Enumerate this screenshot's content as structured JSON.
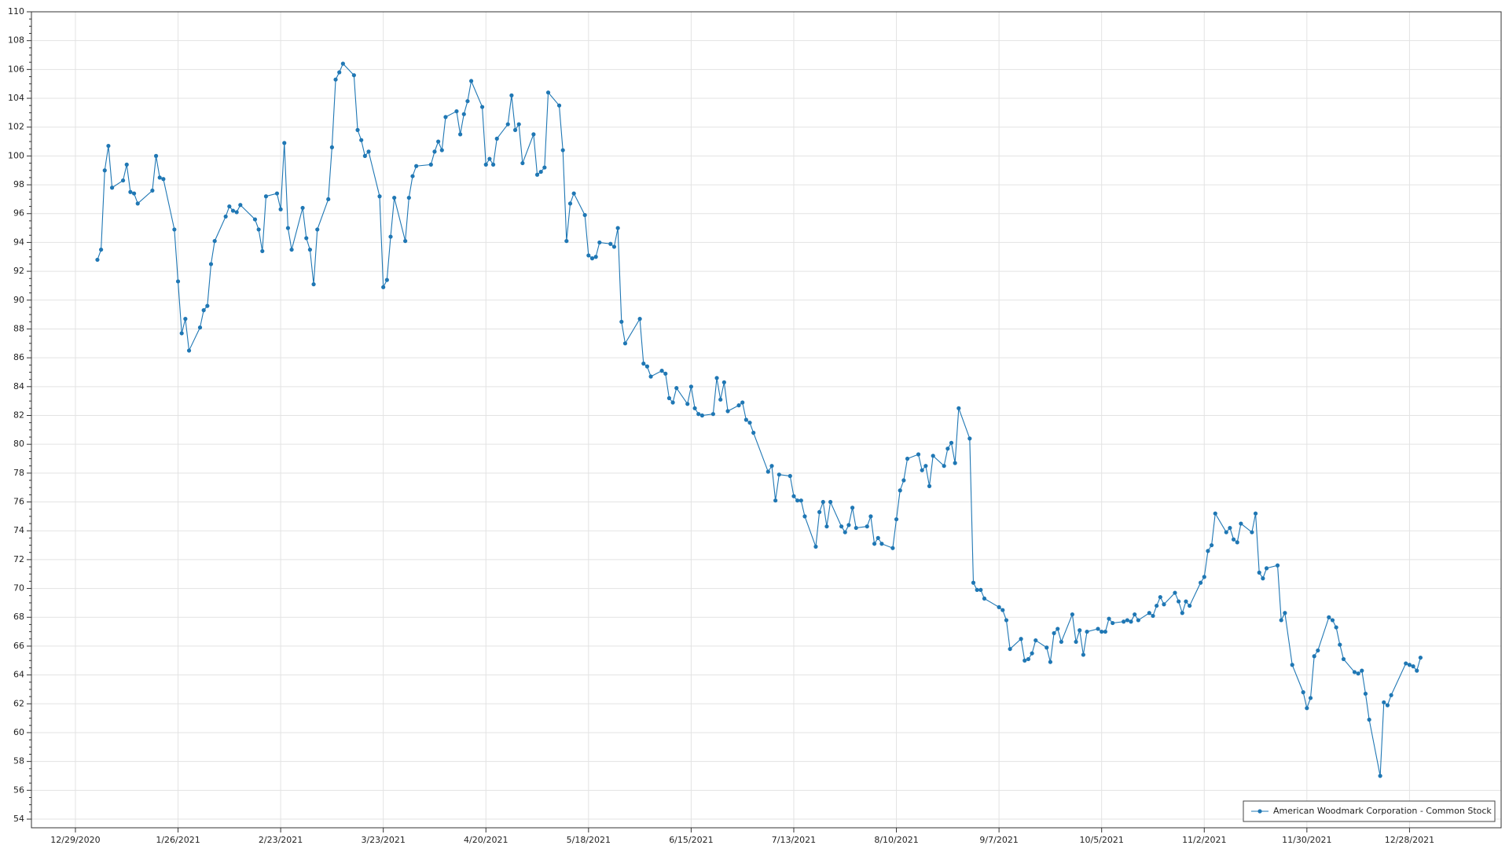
{
  "chart_data": {
    "type": "line",
    "x": [
      "2021-01-04",
      "2021-01-05",
      "2021-01-06",
      "2021-01-07",
      "2021-01-08",
      "2021-01-11",
      "2021-01-12",
      "2021-01-13",
      "2021-01-14",
      "2021-01-15",
      "2021-01-19",
      "2021-01-20",
      "2021-01-21",
      "2021-01-22",
      "2021-01-25",
      "2021-01-26",
      "2021-01-27",
      "2021-01-28",
      "2021-01-29",
      "2021-02-01",
      "2021-02-02",
      "2021-02-03",
      "2021-02-04",
      "2021-02-05",
      "2021-02-08",
      "2021-02-09",
      "2021-02-10",
      "2021-02-11",
      "2021-02-12",
      "2021-02-16",
      "2021-02-17",
      "2021-02-18",
      "2021-02-19",
      "2021-02-22",
      "2021-02-23",
      "2021-02-24",
      "2021-02-25",
      "2021-02-26",
      "2021-03-01",
      "2021-03-02",
      "2021-03-03",
      "2021-03-04",
      "2021-03-05",
      "2021-03-08",
      "2021-03-09",
      "2021-03-10",
      "2021-03-11",
      "2021-03-12",
      "2021-03-15",
      "2021-03-16",
      "2021-03-17",
      "2021-03-18",
      "2021-03-19",
      "2021-03-22",
      "2021-03-23",
      "2021-03-24",
      "2021-03-25",
      "2021-03-26",
      "2021-03-29",
      "2021-03-30",
      "2021-03-31",
      "2021-04-01",
      "2021-04-05",
      "2021-04-06",
      "2021-04-07",
      "2021-04-08",
      "2021-04-09",
      "2021-04-12",
      "2021-04-13",
      "2021-04-14",
      "2021-04-15",
      "2021-04-16",
      "2021-04-19",
      "2021-04-20",
      "2021-04-21",
      "2021-04-22",
      "2021-04-23",
      "2021-04-26",
      "2021-04-27",
      "2021-04-28",
      "2021-04-29",
      "2021-04-30",
      "2021-05-03",
      "2021-05-04",
      "2021-05-05",
      "2021-05-06",
      "2021-05-07",
      "2021-05-10",
      "2021-05-11",
      "2021-05-12",
      "2021-05-13",
      "2021-05-14",
      "2021-05-17",
      "2021-05-18",
      "2021-05-19",
      "2021-05-20",
      "2021-05-21",
      "2021-05-24",
      "2021-05-25",
      "2021-05-26",
      "2021-05-27",
      "2021-05-28",
      "2021-06-01",
      "2021-06-02",
      "2021-06-03",
      "2021-06-04",
      "2021-06-07",
      "2021-06-08",
      "2021-06-09",
      "2021-06-10",
      "2021-06-11",
      "2021-06-14",
      "2021-06-15",
      "2021-06-16",
      "2021-06-17",
      "2021-06-18",
      "2021-06-21",
      "2021-06-22",
      "2021-06-23",
      "2021-06-24",
      "2021-06-25",
      "2021-06-28",
      "2021-06-29",
      "2021-06-30",
      "2021-07-01",
      "2021-07-02",
      "2021-07-06",
      "2021-07-07",
      "2021-07-08",
      "2021-07-09",
      "2021-07-12",
      "2021-07-13",
      "2021-07-14",
      "2021-07-15",
      "2021-07-16",
      "2021-07-19",
      "2021-07-20",
      "2021-07-21",
      "2021-07-22",
      "2021-07-23",
      "2021-07-26",
      "2021-07-27",
      "2021-07-28",
      "2021-07-29",
      "2021-07-30",
      "2021-08-02",
      "2021-08-03",
      "2021-08-04",
      "2021-08-05",
      "2021-08-06",
      "2021-08-09",
      "2021-08-10",
      "2021-08-11",
      "2021-08-12",
      "2021-08-13",
      "2021-08-16",
      "2021-08-17",
      "2021-08-18",
      "2021-08-19",
      "2021-08-20",
      "2021-08-23",
      "2021-08-24",
      "2021-08-25",
      "2021-08-26",
      "2021-08-27",
      "2021-08-30",
      "2021-08-31",
      "2021-09-01",
      "2021-09-02",
      "2021-09-03",
      "2021-09-07",
      "2021-09-08",
      "2021-09-09",
      "2021-09-10",
      "2021-09-13",
      "2021-09-14",
      "2021-09-15",
      "2021-09-16",
      "2021-09-17",
      "2021-09-20",
      "2021-09-21",
      "2021-09-22",
      "2021-09-23",
      "2021-09-24",
      "2021-09-27",
      "2021-09-28",
      "2021-09-29",
      "2021-09-30",
      "2021-10-01",
      "2021-10-04",
      "2021-10-05",
      "2021-10-06",
      "2021-10-07",
      "2021-10-08",
      "2021-10-11",
      "2021-10-12",
      "2021-10-13",
      "2021-10-14",
      "2021-10-15",
      "2021-10-18",
      "2021-10-19",
      "2021-10-20",
      "2021-10-21",
      "2021-10-22",
      "2021-10-25",
      "2021-10-26",
      "2021-10-27",
      "2021-10-28",
      "2021-10-29",
      "2021-11-01",
      "2021-11-02",
      "2021-11-03",
      "2021-11-04",
      "2021-11-05",
      "2021-11-08",
      "2021-11-09",
      "2021-11-10",
      "2021-11-11",
      "2021-11-12",
      "2021-11-15",
      "2021-11-16",
      "2021-11-17",
      "2021-11-18",
      "2021-11-19",
      "2021-11-22",
      "2021-11-23",
      "2021-11-24",
      "2021-11-26",
      "2021-11-29",
      "2021-11-30",
      "2021-12-01",
      "2021-12-02",
      "2021-12-03",
      "2021-12-06",
      "2021-12-07",
      "2021-12-08",
      "2021-12-09",
      "2021-12-10",
      "2021-12-13",
      "2021-12-14",
      "2021-12-15",
      "2021-12-16",
      "2021-12-17",
      "2021-12-20",
      "2021-12-21",
      "2021-12-22",
      "2021-12-23",
      "2021-12-27",
      "2021-12-28",
      "2021-12-29",
      "2021-12-30",
      "2021-12-31"
    ],
    "series": [
      {
        "name": "American Woodmark Corporation - Common Stock",
        "color": "#1f77b4",
        "values": [
          92.8,
          93.5,
          99,
          100.7,
          97.8,
          98.3,
          99.4,
          97.5,
          97.4,
          96.7,
          97.6,
          100,
          98.5,
          98.4,
          94.9,
          91.3,
          87.7,
          88.7,
          86.5,
          88.1,
          89.3,
          89.6,
          92.5,
          94.1,
          95.8,
          96.5,
          96.2,
          96.1,
          96.6,
          95.6,
          94.9,
          93.4,
          97.2,
          97.4,
          96.3,
          100.9,
          95,
          93.5,
          96.4,
          94.3,
          93.5,
          91.1,
          94.9,
          97,
          100.6,
          105.3,
          105.8,
          106.4,
          105.6,
          101.8,
          101.1,
          100,
          100.3,
          97.2,
          90.9,
          91.4,
          94.4,
          97.1,
          94.1,
          97.1,
          98.6,
          99.3,
          99.4,
          100.3,
          101,
          100.4,
          102.7,
          103.1,
          101.5,
          102.9,
          103.8,
          105.2,
          103.4,
          99.4,
          99.8,
          99.4,
          101.2,
          102.2,
          104.2,
          101.8,
          102.2,
          99.5,
          101.5,
          98.7,
          98.9,
          99.2,
          104.4,
          103.5,
          100.4,
          94.1,
          96.7,
          97.4,
          95.9,
          93.1,
          92.9,
          93,
          94,
          93.9,
          93.7,
          95,
          88.5,
          87,
          88.7,
          85.6,
          85.4,
          84.7,
          85.1,
          84.9,
          83.2,
          82.9,
          83.9,
          82.8,
          84,
          82.5,
          82.1,
          82,
          82.1,
          84.6,
          83.1,
          84.3,
          82.3,
          82.7,
          82.9,
          81.7,
          81.5,
          80.8,
          78.1,
          78.5,
          76.1,
          77.9,
          77.8,
          76.4,
          76.1,
          76.1,
          75,
          72.9,
          75.3,
          76,
          74.3,
          76,
          74.3,
          73.9,
          74.4,
          75.6,
          74.2,
          74.3,
          75,
          73.1,
          73.5,
          73.1,
          72.8,
          74.8,
          76.8,
          77.5,
          79,
          79.3,
          78.2,
          78.5,
          77.1,
          79.2,
          78.5,
          79.7,
          80.1,
          78.7,
          82.5,
          80.4,
          70.4,
          69.9,
          69.9,
          69.3,
          68.7,
          68.5,
          67.8,
          65.8,
          66.5,
          65,
          65.1,
          65.5,
          66.4,
          65.9,
          64.9,
          66.9,
          67.2,
          66.3,
          68.2,
          66.3,
          67.1,
          65.4,
          67,
          67.2,
          67,
          67,
          67.9,
          67.6,
          67.7,
          67.8,
          67.7,
          68.2,
          67.8,
          68.3,
          68.1,
          68.8,
          69.4,
          68.9,
          69.7,
          69.1,
          68.3,
          69.1,
          68.8,
          70.4,
          70.8,
          72.6,
          73,
          75.2,
          73.9,
          74.2,
          73.4,
          73.2,
          74.5,
          73.9,
          75.2,
          71.1,
          70.7,
          71.4,
          71.6,
          67.8,
          68.3,
          64.7,
          62.8,
          61.7,
          62.4,
          65.3,
          65.7,
          68,
          67.8,
          67.3,
          66.1,
          65.1,
          64.2,
          64.1,
          64.3,
          62.7,
          60.9,
          57,
          62.1,
          61.9,
          62.6,
          64.8,
          64.7,
          64.6,
          64.3,
          65.2
        ]
      }
    ],
    "xlim": [
      "2020-12-17",
      "2022-01-22"
    ],
    "xticks": [
      {
        "value": "2020-12-29",
        "label": "12/29/2020"
      },
      {
        "value": "2021-01-26",
        "label": "1/26/2021"
      },
      {
        "value": "2021-02-23",
        "label": "2/23/2021"
      },
      {
        "value": "2021-03-23",
        "label": "3/23/2021"
      },
      {
        "value": "2021-04-20",
        "label": "4/20/2021"
      },
      {
        "value": "2021-05-18",
        "label": "5/18/2021"
      },
      {
        "value": "2021-06-15",
        "label": "6/15/2021"
      },
      {
        "value": "2021-07-13",
        "label": "7/13/2021"
      },
      {
        "value": "2021-08-10",
        "label": "8/10/2021"
      },
      {
        "value": "2021-09-07",
        "label": "9/7/2021"
      },
      {
        "value": "2021-10-05",
        "label": "10/5/2021"
      },
      {
        "value": "2021-11-02",
        "label": "11/2/2021"
      },
      {
        "value": "2021-11-30",
        "label": "11/30/2021"
      },
      {
        "value": "2021-12-28",
        "label": "12/28/2021"
      }
    ],
    "ylim": [
      53.4,
      110
    ],
    "yticks": [
      54,
      56,
      58,
      60,
      62,
      64,
      66,
      68,
      70,
      72,
      74,
      76,
      78,
      80,
      82,
      84,
      86,
      88,
      90,
      92,
      94,
      96,
      98,
      100,
      102,
      104,
      106,
      108,
      110
    ],
    "grid": true,
    "legend": "bottom-right"
  }
}
